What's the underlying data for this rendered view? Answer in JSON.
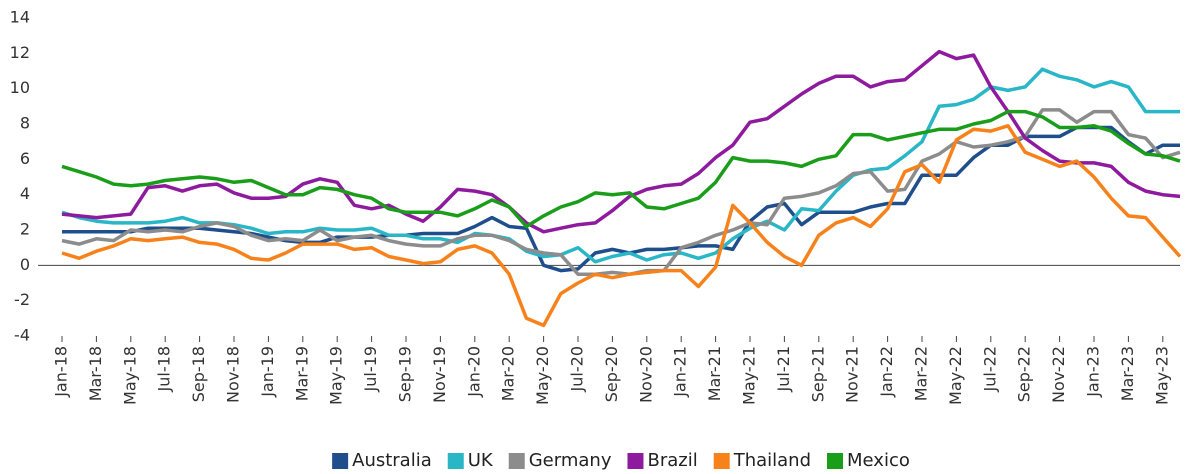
{
  "chart_data": {
    "type": "line",
    "categories": [
      "Jan-18",
      null,
      "Mar-18",
      null,
      "May-18",
      null,
      "Jul-18",
      null,
      "Sep-18",
      null,
      "Nov-18",
      null,
      "Jan-19",
      null,
      "Mar-19",
      null,
      "May-19",
      null,
      "Jul-19",
      null,
      "Sep-19",
      null,
      "Nov-19",
      null,
      "Jan-20",
      null,
      "Mar-20",
      null,
      "May-20",
      null,
      "Jul-20",
      null,
      "Sep-20",
      null,
      "Nov-20",
      null,
      "Jan-21",
      null,
      "Mar-21",
      null,
      "May-21",
      null,
      "Jul-21",
      null,
      "Sep-21",
      null,
      "Nov-21",
      null,
      "Jan-22",
      null,
      "Mar-22",
      null,
      "May-22",
      null,
      "Jul-22",
      null,
      "Sep-22",
      null,
      "Nov-22",
      null,
      "Jan-23",
      null,
      "Mar-23",
      null,
      "May-23",
      null
    ],
    "series": [
      {
        "name": "Australia",
        "color": "#1f4e8c",
        "values": [
          1.9,
          1.9,
          1.9,
          1.9,
          1.9,
          2.1,
          2.1,
          2.1,
          2.1,
          2.0,
          1.9,
          1.8,
          1.6,
          1.4,
          1.3,
          1.3,
          1.6,
          1.6,
          1.6,
          1.7,
          1.7,
          1.8,
          1.8,
          1.8,
          2.2,
          2.7,
          2.2,
          2.1,
          0.0,
          -0.3,
          -0.2,
          0.7,
          0.9,
          0.7,
          0.9,
          0.9,
          1.0,
          1.1,
          1.1,
          0.9,
          2.5,
          3.3,
          3.5,
          2.3,
          3.0,
          3.0,
          3.0,
          3.3,
          3.5,
          3.5,
          5.1,
          5.1,
          5.1,
          6.1,
          6.8,
          6.8,
          7.3,
          7.3,
          7.3,
          7.8,
          7.8,
          7.8,
          7.0,
          6.3,
          6.8,
          6.8
        ]
      },
      {
        "name": "UK",
        "color": "#29b6c6",
        "values": [
          3.0,
          2.7,
          2.5,
          2.4,
          2.4,
          2.4,
          2.5,
          2.7,
          2.4,
          2.4,
          2.3,
          2.1,
          1.8,
          1.9,
          1.9,
          2.1,
          2.0,
          2.0,
          2.1,
          1.7,
          1.7,
          1.5,
          1.5,
          1.3,
          1.8,
          1.7,
          1.5,
          0.8,
          0.5,
          0.6,
          1.0,
          0.2,
          0.5,
          0.7,
          0.3,
          0.6,
          0.7,
          0.4,
          0.7,
          1.5,
          2.1,
          2.5,
          2.0,
          3.2,
          3.1,
          4.2,
          5.1,
          5.4,
          5.5,
          6.2,
          7.0,
          9.0,
          9.1,
          9.4,
          10.1,
          9.9,
          10.1,
          11.1,
          10.7,
          10.5,
          10.1,
          10.4,
          10.1,
          8.7,
          8.7,
          8.7
        ]
      },
      {
        "name": "Germany",
        "color": "#8c8c8c",
        "values": [
          1.4,
          1.2,
          1.5,
          1.4,
          2.0,
          1.9,
          2.0,
          1.9,
          2.2,
          2.4,
          2.2,
          1.7,
          1.4,
          1.5,
          1.4,
          2.0,
          1.4,
          1.6,
          1.7,
          1.4,
          1.2,
          1.1,
          1.1,
          1.5,
          1.7,
          1.7,
          1.4,
          0.9,
          0.7,
          0.6,
          -0.5,
          -0.5,
          -0.4,
          -0.5,
          -0.3,
          -0.3,
          1.0,
          1.3,
          1.7,
          2.0,
          2.4,
          2.3,
          3.8,
          3.9,
          4.1,
          4.5,
          5.2,
          5.3,
          4.2,
          4.3,
          5.9,
          6.3,
          7.0,
          6.7,
          6.8,
          7.0,
          7.3,
          8.8,
          8.8,
          8.1,
          8.7,
          8.7,
          7.4,
          7.2,
          6.1,
          6.4
        ]
      },
      {
        "name": "Brazil",
        "color": "#8e1a9e",
        "values": [
          2.9,
          2.8,
          2.7,
          2.8,
          2.9,
          4.4,
          4.5,
          4.2,
          4.5,
          4.6,
          4.1,
          3.8,
          3.8,
          3.9,
          4.6,
          4.9,
          4.7,
          3.4,
          3.2,
          3.4,
          2.9,
          2.5,
          3.3,
          4.3,
          4.2,
          4.0,
          3.3,
          2.4,
          1.9,
          2.1,
          2.3,
          2.4,
          3.1,
          3.9,
          4.3,
          4.5,
          4.6,
          5.2,
          6.1,
          6.8,
          8.1,
          8.3,
          9.0,
          9.7,
          10.3,
          10.7,
          10.7,
          10.1,
          10.4,
          10.5,
          11.3,
          12.1,
          11.7,
          11.9,
          10.1,
          8.7,
          7.2,
          6.5,
          5.9,
          5.8,
          5.8,
          5.6,
          4.7,
          4.2,
          4.0,
          3.9
        ]
      },
      {
        "name": "Thailand",
        "color": "#f7821b",
        "values": [
          0.7,
          0.4,
          0.8,
          1.1,
          1.5,
          1.4,
          1.5,
          1.6,
          1.3,
          1.2,
          0.9,
          0.4,
          0.3,
          0.7,
          1.2,
          1.2,
          1.2,
          0.9,
          1.0,
          0.5,
          0.3,
          0.1,
          0.2,
          0.9,
          1.1,
          0.7,
          -0.5,
          -3.0,
          -3.4,
          -1.6,
          -1.0,
          -0.5,
          -0.7,
          -0.5,
          -0.4,
          -0.3,
          -0.3,
          -1.2,
          -0.1,
          3.4,
          2.4,
          1.3,
          0.5,
          0.0,
          1.7,
          2.4,
          2.7,
          2.2,
          3.2,
          5.3,
          5.7,
          4.7,
          7.1,
          7.7,
          7.6,
          7.9,
          6.4,
          6.0,
          5.6,
          5.9,
          5.0,
          3.8,
          2.8,
          2.7,
          1.6,
          0.5
        ]
      },
      {
        "name": "Mexico",
        "color": "#1a9e1a",
        "values": [
          5.6,
          5.3,
          5.0,
          4.6,
          4.5,
          4.6,
          4.8,
          4.9,
          5.0,
          4.9,
          4.7,
          4.8,
          4.4,
          4.0,
          4.0,
          4.4,
          4.3,
          4.0,
          3.8,
          3.2,
          3.0,
          3.0,
          3.0,
          2.8,
          3.2,
          3.7,
          3.3,
          2.2,
          2.8,
          3.3,
          3.6,
          4.1,
          4.0,
          4.1,
          3.3,
          3.2,
          3.5,
          3.8,
          4.7,
          6.1,
          5.9,
          5.9,
          5.8,
          5.6,
          6.0,
          6.2,
          7.4,
          7.4,
          7.1,
          7.3,
          7.5,
          7.7,
          7.7,
          8.0,
          8.2,
          8.7,
          8.7,
          8.4,
          7.8,
          7.8,
          7.9,
          7.6,
          6.9,
          6.3,
          6.2,
          5.9
        ]
      }
    ],
    "ylim": [
      -4,
      14
    ],
    "yticks": [
      -4,
      -2,
      0,
      2,
      4,
      6,
      8,
      10,
      12,
      14
    ],
    "legend": "bottom"
  }
}
